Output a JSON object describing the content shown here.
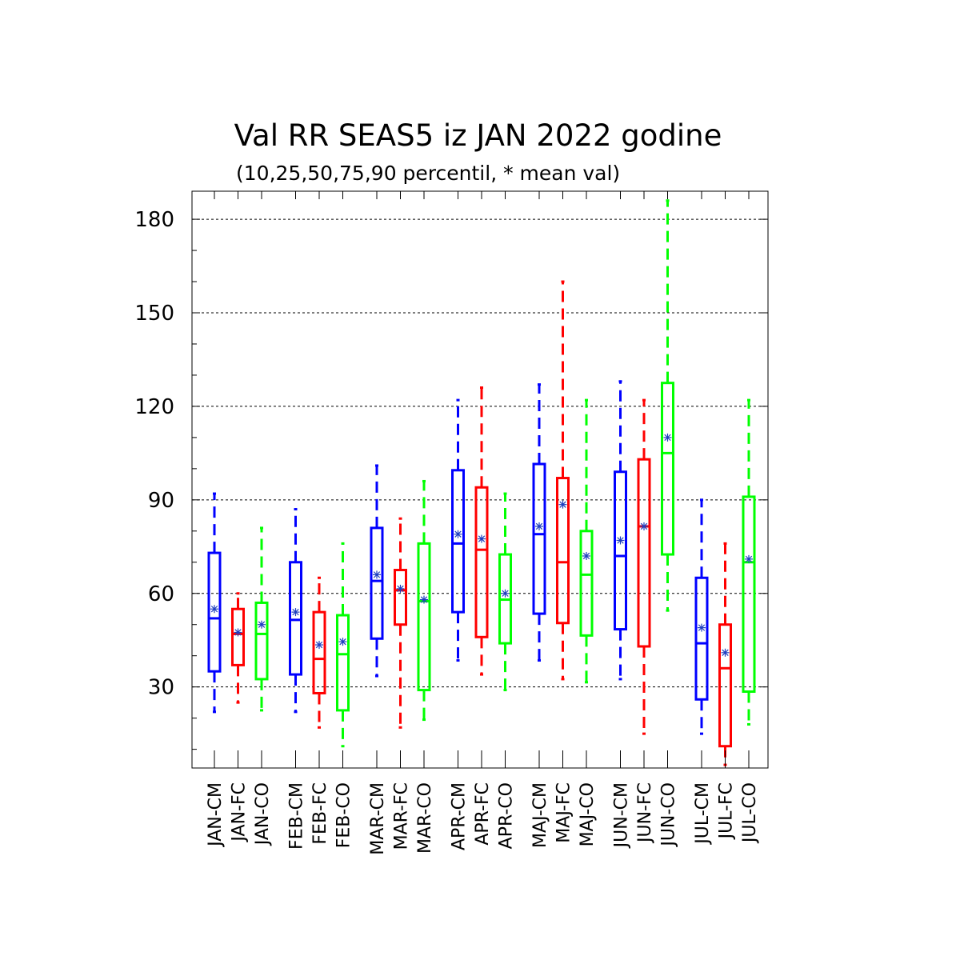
{
  "chart_data": {
    "type": "box",
    "title": "Val RR SEAS5 iz JAN 2022 godine",
    "subtitle": "(10,25,50,75,90 percentil, * mean val)",
    "xlabel": "",
    "ylabel": "",
    "ylim": [
      4,
      189
    ],
    "yticks": [
      30,
      60,
      90,
      120,
      150,
      180
    ],
    "grid": "horizontal dashed at major ticks",
    "colors": {
      "CM": "#0000ff",
      "FC": "#ff0000",
      "CO": "#00ff00",
      "mean_marker": "#1f3fbf"
    },
    "categories": [
      "JAN-CM",
      "JAN-FC",
      "JAN-CO",
      "FEB-CM",
      "FEB-FC",
      "FEB-CO",
      "MAR-CM",
      "MAR-FC",
      "MAR-CO",
      "APR-CM",
      "APR-FC",
      "APR-CO",
      "MAJ-CM",
      "MAJ-FC",
      "MAJ-CO",
      "JUN-CM",
      "JUN-FC",
      "JUN-CO",
      "JUL-CM",
      "JUL-FC",
      "JUL-CO"
    ],
    "boxes": [
      {
        "label": "JAN-CM",
        "series": "CM",
        "p10": 22,
        "p25": 35,
        "p50": 52,
        "p75": 73,
        "p90": 92,
        "mean": 55
      },
      {
        "label": "JAN-FC",
        "series": "FC",
        "p10": 25,
        "p25": 37,
        "p50": 47,
        "p75": 55,
        "p90": 60,
        "mean": 47.5
      },
      {
        "label": "JAN-CO",
        "series": "CO",
        "p10": 22.5,
        "p25": 32.5,
        "p50": 47,
        "p75": 57,
        "p90": 81,
        "mean": 50
      },
      {
        "label": "FEB-CM",
        "series": "CM",
        "p10": 22,
        "p25": 34,
        "p50": 51.5,
        "p75": 70,
        "p90": 87,
        "mean": 54
      },
      {
        "label": "FEB-FC",
        "series": "FC",
        "p10": 17,
        "p25": 28,
        "p50": 39,
        "p75": 54,
        "p90": 65,
        "mean": 43.5
      },
      {
        "label": "FEB-CO",
        "series": "CO",
        "p10": 11,
        "p25": 22.5,
        "p50": 40.5,
        "p75": 53,
        "p90": 76,
        "mean": 44.5
      },
      {
        "label": "MAR-CM",
        "series": "CM",
        "p10": 33.5,
        "p25": 45.5,
        "p50": 64,
        "p75": 81,
        "p90": 101,
        "mean": 66
      },
      {
        "label": "MAR-FC",
        "series": "FC",
        "p10": 17,
        "p25": 50,
        "p50": 61,
        "p75": 67.5,
        "p90": 84,
        "mean": 61.5
      },
      {
        "label": "MAR-CO",
        "series": "CO",
        "p10": 19.5,
        "p25": 29,
        "p50": 57.5,
        "p75": 76,
        "p90": 96,
        "mean": 58
      },
      {
        "label": "APR-CM",
        "series": "CM",
        "p10": 38.5,
        "p25": 54,
        "p50": 76,
        "p75": 99.5,
        "p90": 122,
        "mean": 79
      },
      {
        "label": "APR-FC",
        "series": "FC",
        "p10": 34,
        "p25": 46,
        "p50": 74,
        "p75": 94,
        "p90": 126,
        "mean": 77.5
      },
      {
        "label": "APR-CO",
        "series": "CO",
        "p10": 29,
        "p25": 44,
        "p50": 58,
        "p75": 72.5,
        "p90": 92,
        "mean": 60
      },
      {
        "label": "MAJ-CM",
        "series": "CM",
        "p10": 38.5,
        "p25": 53.5,
        "p50": 79,
        "p75": 101.5,
        "p90": 127,
        "mean": 81.5
      },
      {
        "label": "MAJ-FC",
        "series": "FC",
        "p10": 32.5,
        "p25": 50.5,
        "p50": 70,
        "p75": 97,
        "p90": 160,
        "mean": 88.5
      },
      {
        "label": "MAJ-CO",
        "series": "CO",
        "p10": 31.5,
        "p25": 46.5,
        "p50": 66,
        "p75": 80,
        "p90": 122,
        "mean": 72
      },
      {
        "label": "JUN-CM",
        "series": "CM",
        "p10": 32.5,
        "p25": 48.5,
        "p50": 72,
        "p75": 99,
        "p90": 128,
        "mean": 77
      },
      {
        "label": "JUN-FC",
        "series": "FC",
        "p10": 15,
        "p25": 43,
        "p50": 81.5,
        "p75": 103,
        "p90": 122,
        "mean": 81.5
      },
      {
        "label": "JUN-CO",
        "series": "CO",
        "p10": 54.5,
        "p25": 72.5,
        "p50": 105,
        "p75": 127.5,
        "p90": 186,
        "mean": 110
      },
      {
        "label": "JUL-CM",
        "series": "CM",
        "p10": 15,
        "p25": 26,
        "p50": 44,
        "p75": 65,
        "p90": 90,
        "mean": 49
      },
      {
        "label": "JUL-FC",
        "series": "FC",
        "p10": 5,
        "p25": 11,
        "p50": 36,
        "p75": 50,
        "p90": 76,
        "mean": 41
      },
      {
        "label": "JUL-CO",
        "series": "CO",
        "p10": 18,
        "p25": 28.5,
        "p50": 70,
        "p75": 91,
        "p90": 122,
        "mean": 71
      }
    ]
  }
}
